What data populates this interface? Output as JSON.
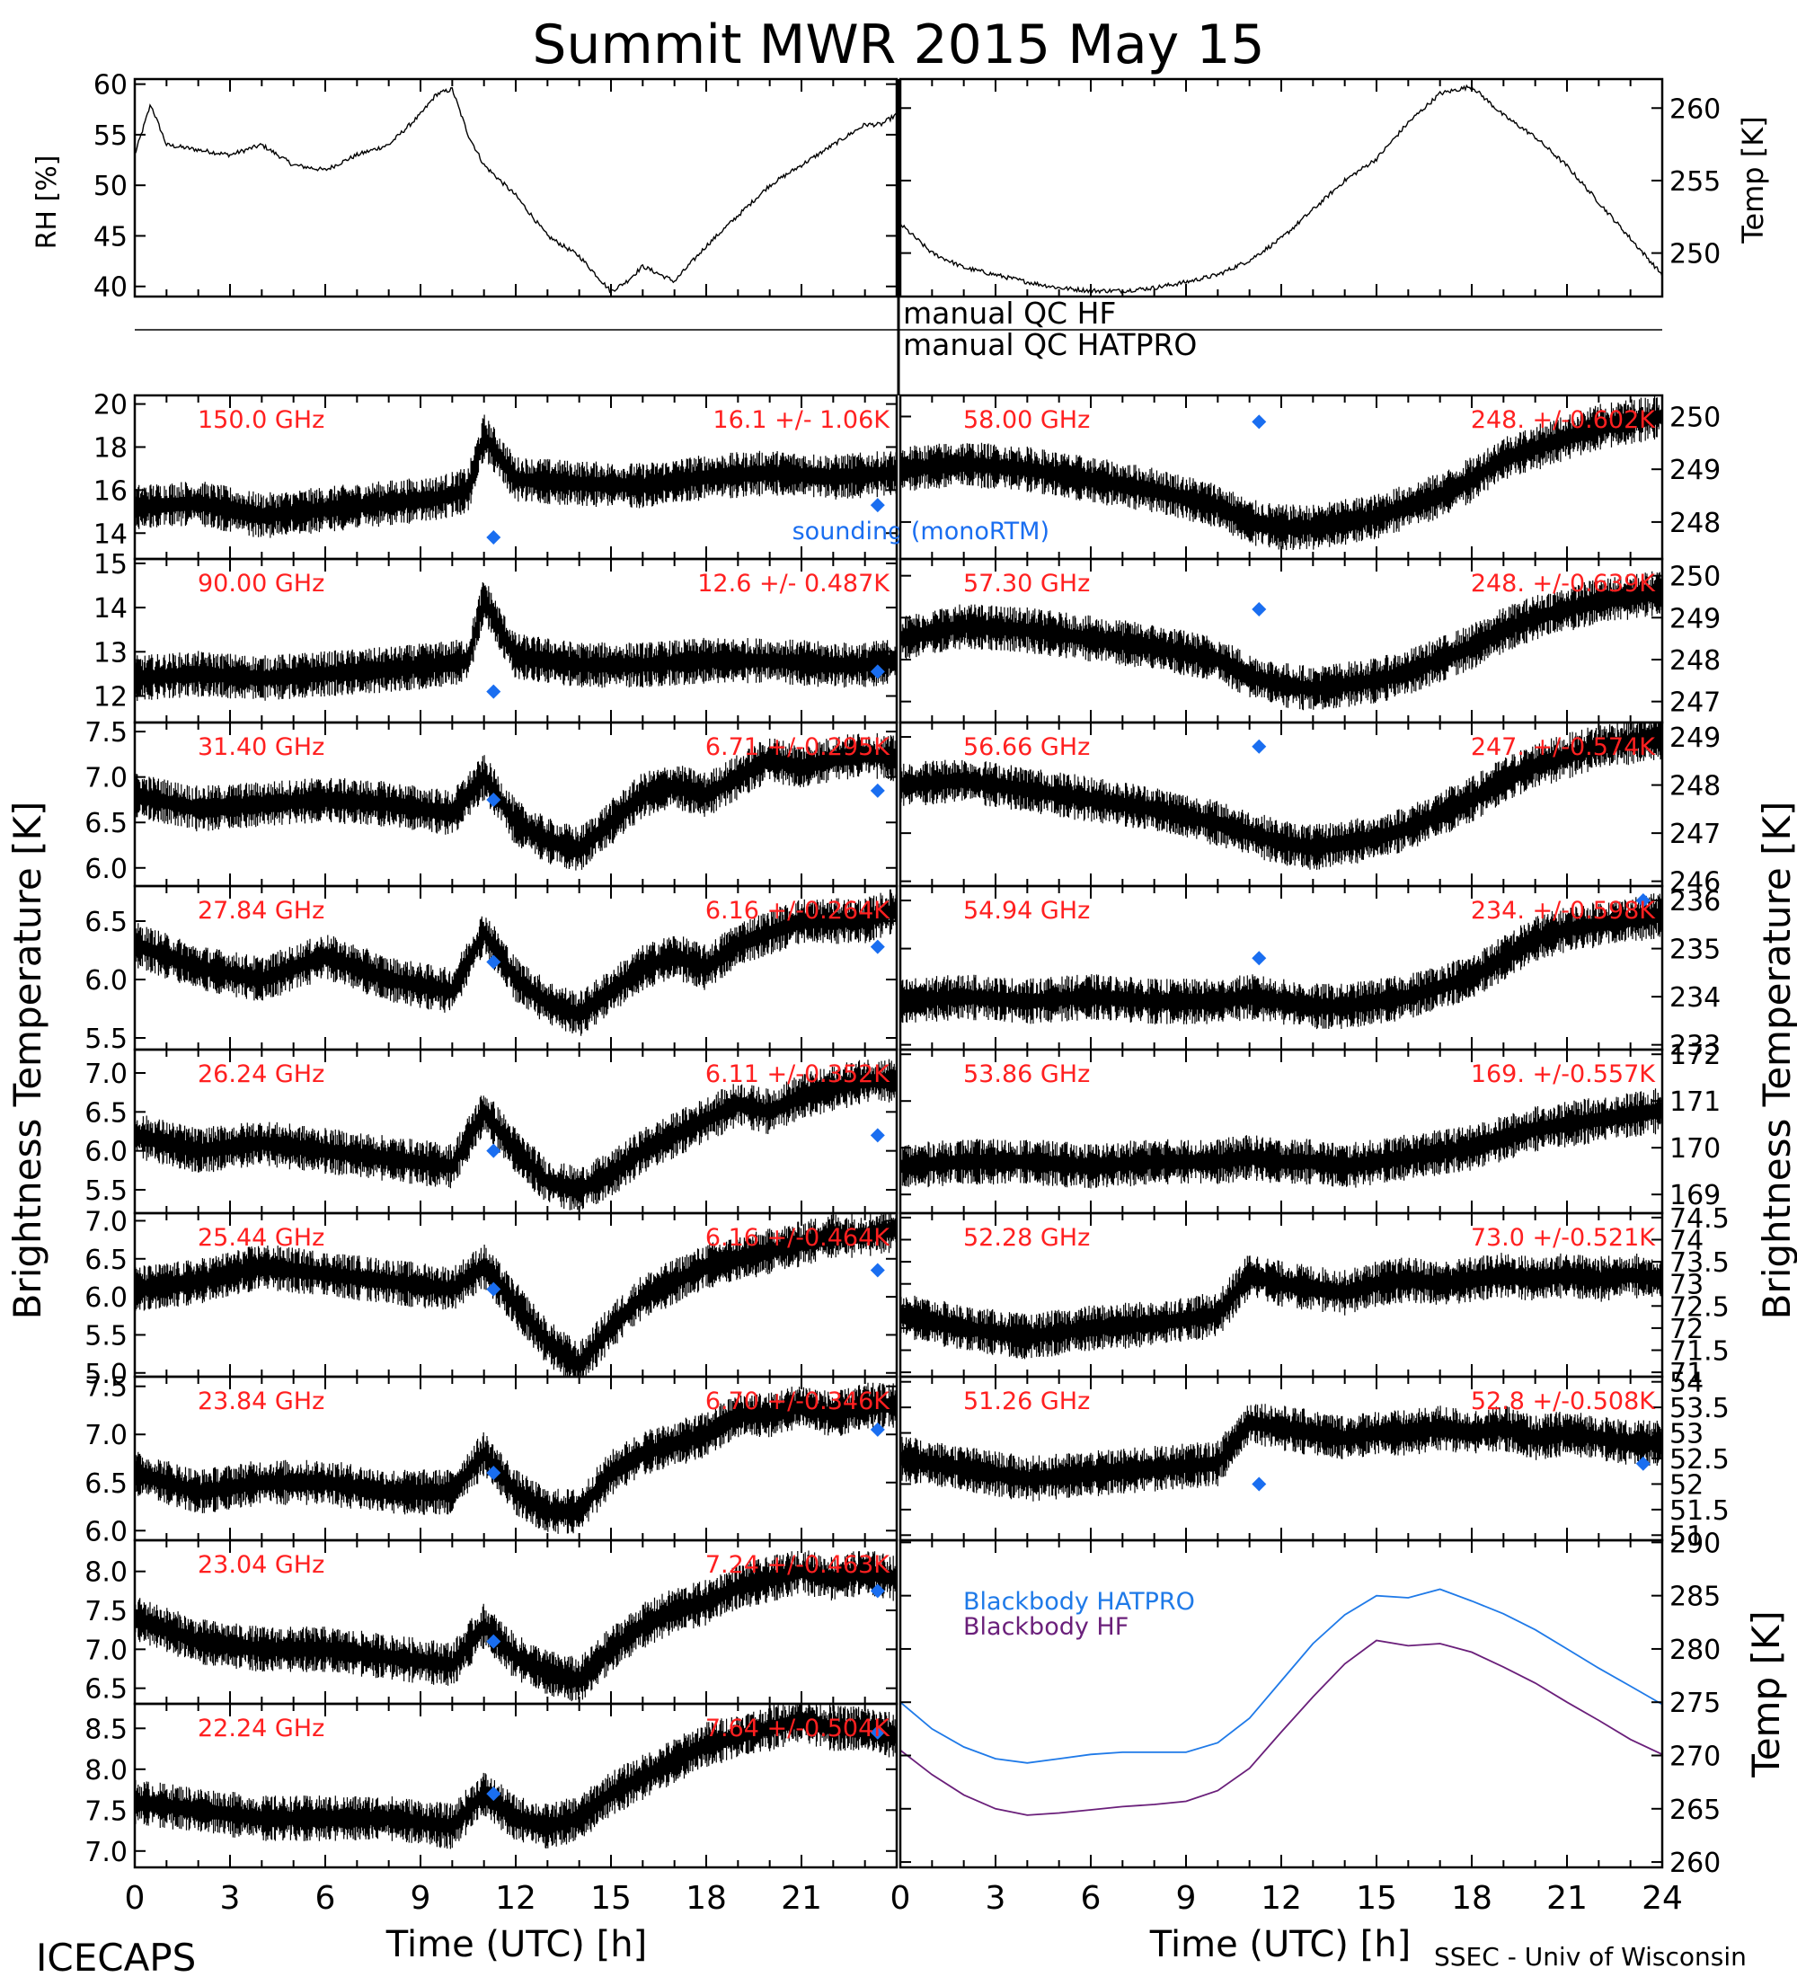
{
  "title": "Summit MWR 2015 May 15",
  "footer": {
    "left": "ICECAPS",
    "right": "SSEC - Univ of Wisconsin"
  },
  "colors": {
    "label": "#ff2020",
    "marker": "#1a6ef0",
    "hatpro": "#1f7ae8",
    "hf": "#6a1f7a",
    "data": "#000000"
  },
  "xaxis": {
    "label": "Time (UTC) [h]",
    "ticks": [
      0,
      3,
      6,
      9,
      12,
      15,
      18,
      21,
      24
    ]
  },
  "ylabels": {
    "left_big": "Brightness Temperature [K]",
    "right_big": "Brightness Temperature [K]",
    "rh": "RH [%]",
    "temp": "Temp [K]",
    "bb_temp": "Temp [K]"
  },
  "qc": {
    "hf": "manual  QC HF",
    "hatpro": "manual  QC HATPRO"
  },
  "sounding_label": "sounding (monoRTM)",
  "chart_data": [
    {
      "type": "line",
      "name": "rh",
      "ylabel": "RH [%]",
      "xlim": [
        0,
        24
      ],
      "ylim": [
        39,
        60.5
      ],
      "yticks": [
        40,
        45,
        50,
        55,
        60
      ],
      "x": [
        0,
        0.5,
        1,
        2,
        3,
        4,
        5,
        6,
        7,
        8,
        9,
        9.5,
        10,
        10.5,
        11,
        12,
        13,
        13.5,
        14,
        15,
        15.5,
        16,
        17,
        18,
        19,
        20,
        21,
        22,
        23,
        23.5,
        24
      ],
      "y": [
        53,
        58,
        54,
        53.5,
        53,
        54,
        52,
        51.5,
        53,
        54,
        57,
        59,
        59.5,
        55,
        52,
        49,
        45,
        44,
        43,
        39.5,
        40.5,
        42,
        40.5,
        44,
        47,
        50,
        52,
        54,
        56,
        56,
        57
      ]
    },
    {
      "type": "line",
      "name": "temp",
      "ylabel": "Temp [K]",
      "xlim": [
        0,
        24
      ],
      "ylim": [
        247,
        262
      ],
      "yticks": [
        250,
        255,
        260
      ],
      "x": [
        0,
        1,
        2,
        3,
        4,
        5,
        6,
        7,
        8,
        9,
        10,
        11,
        12,
        13,
        14,
        15,
        16,
        17,
        18,
        19,
        20,
        21,
        22,
        23,
        24
      ],
      "y": [
        252,
        250,
        249,
        248.5,
        248,
        247.6,
        247.4,
        247.4,
        247.6,
        248,
        248.5,
        249.5,
        251,
        253,
        255,
        256.5,
        259,
        261,
        261.5,
        259.5,
        258,
        256,
        253.5,
        251,
        248.5
      ]
    },
    {
      "type": "scatter",
      "label": "150.0 GHz",
      "stats": "16.1 +/- 1.06K",
      "ylim": [
        12.8,
        20.4
      ],
      "yticks": [
        14,
        16,
        18,
        20
      ],
      "x": [
        0,
        2,
        4,
        6,
        8,
        9.5,
        10.5,
        11,
        11.5,
        12,
        14,
        16,
        18,
        20,
        22,
        23,
        24
      ],
      "y": [
        15.2,
        15.4,
        14.8,
        15.1,
        15.4,
        15.6,
        16,
        18.5,
        17.5,
        16.5,
        16.3,
        16.2,
        16.6,
        16.8,
        16.6,
        16.7,
        16.8
      ],
      "sounding": [
        [
          11.3,
          13.8
        ],
        [
          23.4,
          15.3
        ]
      ]
    },
    {
      "type": "scatter",
      "label": "90.00 GHz",
      "stats": "12.6 +/- 0.487K",
      "ylim": [
        11.4,
        15.1
      ],
      "yticks": [
        12,
        13,
        14,
        15
      ],
      "x": [
        0,
        2,
        4,
        6,
        8,
        9.5,
        10.5,
        11,
        11.5,
        12,
        14,
        16,
        18,
        20,
        22,
        23,
        24
      ],
      "y": [
        12.4,
        12.5,
        12.4,
        12.5,
        12.6,
        12.7,
        12.8,
        14.2,
        13.5,
        12.9,
        12.7,
        12.7,
        12.8,
        12.8,
        12.7,
        12.7,
        12.8
      ],
      "sounding": [
        [
          11.3,
          12.1
        ],
        [
          23.4,
          12.55
        ]
      ]
    },
    {
      "type": "scatter",
      "label": "31.40 GHz",
      "stats": "6.71 +/-0.295K",
      "ylim": [
        5.8,
        7.6
      ],
      "yticks": [
        6.0,
        6.5,
        7.0,
        7.5
      ],
      "x": [
        0,
        2,
        4,
        6,
        8,
        10,
        11,
        12,
        13,
        14,
        15,
        16,
        17,
        18,
        19,
        20,
        21,
        22,
        23,
        24
      ],
      "y": [
        6.8,
        6.65,
        6.7,
        6.75,
        6.7,
        6.6,
        7,
        6.5,
        6.3,
        6.2,
        6.5,
        6.8,
        6.9,
        6.8,
        7,
        7.2,
        7.1,
        7.2,
        7.25,
        7.2
      ],
      "sounding": [
        [
          11.3,
          6.75
        ],
        [
          23.4,
          6.85
        ]
      ]
    },
    {
      "type": "scatter",
      "label": "27.84 GHz",
      "stats": "6.16 +/-0.264K",
      "ylim": [
        5.4,
        6.8
      ],
      "yticks": [
        5.5,
        6.0,
        6.5
      ],
      "x": [
        0,
        2,
        4,
        6,
        8,
        10,
        11,
        12,
        13,
        14,
        15,
        16,
        17,
        18,
        19,
        20,
        21,
        22,
        23,
        24
      ],
      "y": [
        6.3,
        6.1,
        6.0,
        6.2,
        6.0,
        5.9,
        6.4,
        6.0,
        5.8,
        5.7,
        5.9,
        6.1,
        6.2,
        6.1,
        6.3,
        6.4,
        6.5,
        6.5,
        6.5,
        6.6
      ],
      "sounding": [
        [
          11.3,
          6.15
        ],
        [
          23.4,
          6.28
        ]
      ]
    },
    {
      "type": "scatter",
      "label": "26.24 GHz",
      "stats": "6.11 +/-0.352K",
      "ylim": [
        5.2,
        7.3
      ],
      "yticks": [
        5.5,
        6.0,
        6.5,
        7.0
      ],
      "x": [
        0,
        2,
        4,
        6,
        8,
        10,
        11,
        12,
        13,
        14,
        15,
        16,
        17,
        18,
        19,
        20,
        21,
        22,
        23,
        24
      ],
      "y": [
        6.2,
        6.0,
        6.1,
        6.0,
        5.9,
        5.8,
        6.5,
        6.0,
        5.6,
        5.5,
        5.7,
        6.0,
        6.2,
        6.4,
        6.6,
        6.5,
        6.7,
        6.8,
        6.9,
        6.9
      ],
      "sounding": [
        [
          11.3,
          6.0
        ],
        [
          23.4,
          6.2
        ]
      ]
    },
    {
      "type": "scatter",
      "label": "25.44 GHz",
      "stats": "6.16 +/-0.464K",
      "ylim": [
        4.95,
        7.1
      ],
      "yticks": [
        5.0,
        5.5,
        6.0,
        6.5,
        7.0
      ],
      "x": [
        0,
        2,
        4,
        6,
        8,
        10,
        11,
        12,
        13,
        14,
        15,
        16,
        17,
        18,
        19,
        20,
        21,
        22,
        23,
        24
      ],
      "y": [
        6.1,
        6.2,
        6.4,
        6.3,
        6.2,
        6.1,
        6.4,
        5.9,
        5.4,
        5.1,
        5.6,
        6.0,
        6.2,
        6.4,
        6.5,
        6.6,
        6.7,
        6.8,
        6.8,
        6.9
      ],
      "sounding": [
        [
          11.3,
          6.1
        ],
        [
          23.4,
          6.35
        ]
      ]
    },
    {
      "type": "scatter",
      "label": "23.84 GHz",
      "stats": "6.70 +/-0.346K",
      "ylim": [
        5.9,
        7.6
      ],
      "yticks": [
        6.0,
        6.5,
        7.0,
        7.5
      ],
      "x": [
        0,
        2,
        4,
        6,
        8,
        10,
        11,
        12,
        13,
        14,
        15,
        16,
        17,
        18,
        19,
        20,
        21,
        22,
        23,
        24
      ],
      "y": [
        6.6,
        6.4,
        6.5,
        6.5,
        6.4,
        6.4,
        6.8,
        6.4,
        6.2,
        6.2,
        6.6,
        6.8,
        6.9,
        7.0,
        7.2,
        7.2,
        7.3,
        7.2,
        7.3,
        7.3
      ],
      "sounding": [
        [
          11.3,
          6.6
        ],
        [
          23.4,
          7.05
        ]
      ]
    },
    {
      "type": "scatter",
      "label": "23.04 GHz",
      "stats": "7.24 +/-0.463K",
      "ylim": [
        6.3,
        8.4
      ],
      "yticks": [
        6.5,
        7.0,
        7.5,
        8.0
      ],
      "x": [
        0,
        2,
        4,
        6,
        8,
        10,
        11,
        12,
        13,
        14,
        15,
        16,
        17,
        18,
        19,
        20,
        21,
        22,
        23,
        24
      ],
      "y": [
        7.4,
        7.1,
        7.0,
        7.0,
        6.9,
        6.8,
        7.3,
        6.9,
        6.7,
        6.6,
        7.0,
        7.3,
        7.5,
        7.6,
        7.8,
        7.9,
        8.0,
        7.9,
        8.0,
        7.9
      ],
      "sounding": [
        [
          11.3,
          7.1
        ],
        [
          23.4,
          7.75
        ]
      ]
    },
    {
      "type": "scatter",
      "label": "22.24 GHz",
      "stats": "7.64 +/-0.504K",
      "ylim": [
        6.8,
        8.8
      ],
      "yticks": [
        7.0,
        7.5,
        8.0,
        8.5
      ],
      "x": [
        0,
        2,
        4,
        6,
        8,
        10,
        11,
        12,
        13,
        14,
        15,
        16,
        17,
        18,
        19,
        20,
        21,
        22,
        23,
        24
      ],
      "y": [
        7.6,
        7.5,
        7.4,
        7.4,
        7.4,
        7.3,
        7.7,
        7.4,
        7.3,
        7.4,
        7.7,
        7.9,
        8.1,
        8.3,
        8.4,
        8.5,
        8.6,
        8.5,
        8.5,
        8.4
      ],
      "sounding": [
        [
          11.3,
          7.7
        ],
        [
          23.4,
          8.45
        ]
      ]
    },
    {
      "type": "scatter",
      "label": "58.00 GHz",
      "stats": "248. +/-0.602K",
      "ylim": [
        247.3,
        250.4
      ],
      "yticks": [
        248,
        249,
        250
      ],
      "x": [
        0,
        2,
        4,
        6,
        8,
        10,
        11,
        12,
        13,
        14,
        15,
        16,
        17,
        18,
        19,
        20,
        21,
        22,
        23,
        24
      ],
      "y": [
        249,
        249.1,
        249,
        248.8,
        248.6,
        248.3,
        248,
        247.9,
        247.9,
        248,
        248.1,
        248.3,
        248.5,
        248.8,
        249.2,
        249.4,
        249.6,
        249.8,
        249.9,
        250
      ],
      "sounding": [
        [
          11.3,
          249.9
        ]
      ]
    },
    {
      "type": "scatter",
      "label": "57.30 GHz",
      "stats": "248. +/-0.639K",
      "ylim": [
        246.5,
        250.4
      ],
      "yticks": [
        247,
        248,
        249,
        250
      ],
      "x": [
        0,
        2,
        4,
        6,
        8,
        10,
        11,
        12,
        13,
        14,
        15,
        16,
        17,
        18,
        19,
        20,
        21,
        22,
        23,
        24
      ],
      "y": [
        248.5,
        248.8,
        248.7,
        248.5,
        248.3,
        248,
        247.6,
        247.4,
        247.3,
        247.4,
        247.5,
        247.7,
        248,
        248.3,
        248.7,
        249,
        249.2,
        249.4,
        249.5,
        249.6
      ],
      "sounding": [
        [
          11.3,
          249.2
        ]
      ]
    },
    {
      "type": "scatter",
      "label": "56.66 GHz",
      "stats": "247. +/-0.574K",
      "ylim": [
        245.9,
        249.3
      ],
      "yticks": [
        246,
        247,
        248,
        249
      ],
      "x": [
        0,
        2,
        4,
        6,
        8,
        10,
        11,
        12,
        13,
        14,
        15,
        16,
        17,
        18,
        19,
        20,
        21,
        22,
        23,
        24
      ],
      "y": [
        248,
        248.1,
        247.9,
        247.7,
        247.5,
        247.2,
        247,
        246.8,
        246.7,
        246.8,
        246.9,
        247.1,
        247.4,
        247.7,
        248.1,
        248.4,
        248.6,
        248.8,
        248.9,
        249
      ],
      "sounding": [
        [
          11.3,
          248.8
        ]
      ]
    },
    {
      "type": "scatter",
      "label": "54.94 GHz",
      "stats": "234. +/-0.598K",
      "ylim": [
        232.9,
        236.3
      ],
      "yticks": [
        233,
        234,
        235,
        236
      ],
      "x": [
        0,
        2,
        4,
        6,
        8,
        10,
        11,
        12,
        13,
        14,
        15,
        16,
        17,
        18,
        19,
        20,
        21,
        22,
        23,
        24
      ],
      "y": [
        233.9,
        234,
        233.9,
        234,
        233.9,
        233.9,
        234,
        233.9,
        233.8,
        233.8,
        233.9,
        234,
        234.2,
        234.4,
        234.8,
        235.2,
        235.4,
        235.5,
        235.6,
        235.7
      ],
      "sounding": [
        [
          11.3,
          234.8
        ],
        [
          23.4,
          236
        ]
      ]
    },
    {
      "type": "scatter",
      "label": "53.86 GHz",
      "stats": "169. +/-0.557K",
      "ylim": [
        168.6,
        172.1
      ],
      "yticks": [
        169,
        170,
        171,
        172
      ],
      "x": [
        0,
        2,
        4,
        6,
        8,
        10,
        11,
        12,
        13,
        14,
        15,
        16,
        17,
        18,
        19,
        20,
        21,
        22,
        23,
        24
      ],
      "y": [
        169.6,
        169.7,
        169.7,
        169.6,
        169.7,
        169.7,
        169.8,
        169.7,
        169.7,
        169.6,
        169.7,
        169.8,
        169.9,
        170,
        170.2,
        170.4,
        170.5,
        170.6,
        170.7,
        170.8
      ],
      "sounding": []
    },
    {
      "type": "scatter",
      "label": "52.28 GHz",
      "stats": "73.0 +/-0.521K",
      "ylim": [
        70.9,
        74.6
      ],
      "yticks": [
        71.0,
        71.5,
        72.0,
        72.5,
        73.0,
        73.5,
        74.0,
        74.5
      ],
      "x": [
        0,
        2,
        4,
        6,
        8,
        10,
        11,
        12,
        13,
        14,
        15,
        16,
        17,
        18,
        19,
        20,
        21,
        22,
        23,
        24
      ],
      "y": [
        72.3,
        72,
        71.8,
        72,
        72.1,
        72.3,
        73.2,
        73,
        72.9,
        72.8,
        73,
        73.1,
        73,
        73.1,
        73.2,
        73.1,
        73.2,
        73.1,
        73.2,
        73.1
      ],
      "sounding": []
    },
    {
      "type": "scatter",
      "label": "51.26 GHz",
      "stats": "52.8 +/-0.508K",
      "ylim": [
        50.9,
        54.1
      ],
      "yticks": [
        51.0,
        51.5,
        52.0,
        52.5,
        53.0,
        53.5,
        54.0
      ],
      "x": [
        0,
        2,
        4,
        6,
        8,
        10,
        11,
        12,
        13,
        14,
        15,
        16,
        17,
        18,
        19,
        20,
        21,
        22,
        23,
        24
      ],
      "y": [
        52.5,
        52.3,
        52.1,
        52.2,
        52.3,
        52.4,
        53.2,
        53.1,
        53,
        52.9,
        53,
        53,
        53.1,
        53,
        53.1,
        52.9,
        53,
        52.9,
        52.8,
        52.8
      ],
      "sounding": [
        [
          11.3,
          52.0
        ],
        [
          23.4,
          52.4
        ]
      ]
    },
    {
      "type": "line",
      "name": "blackbody",
      "ylabel": "Temp [K]",
      "ylim": [
        259.5,
        290.2
      ],
      "yticks": [
        260,
        265,
        270,
        275,
        280,
        285,
        290
      ],
      "series": [
        {
          "name": "Blackbody HATPRO",
          "x": [
            0,
            1,
            2,
            3,
            4,
            5,
            6,
            7,
            8,
            9,
            10,
            11,
            12,
            13,
            14,
            15,
            16,
            17,
            18,
            19,
            20,
            21,
            22,
            23,
            24
          ],
          "y": [
            275,
            272.5,
            270.8,
            269.7,
            269.3,
            269.7,
            270.1,
            270.3,
            270.3,
            270.3,
            271.2,
            273.5,
            277,
            280.5,
            283.2,
            285,
            284.8,
            285.6,
            284.5,
            283.3,
            281.8,
            280,
            278.2,
            276.5,
            274.8
          ]
        },
        {
          "name": "Blackbody HF",
          "x": [
            0,
            1,
            2,
            3,
            4,
            5,
            6,
            7,
            8,
            9,
            10,
            11,
            12,
            13,
            14,
            15,
            16,
            17,
            18,
            19,
            20,
            21,
            22,
            23,
            24
          ],
          "y": [
            270.5,
            268.2,
            266.3,
            265,
            264.4,
            264.6,
            264.9,
            265.2,
            265.4,
            265.7,
            266.7,
            268.8,
            272.2,
            275.5,
            278.6,
            280.8,
            280.3,
            280.5,
            279.7,
            278.3,
            276.8,
            275,
            273.3,
            271.5,
            270.1
          ]
        }
      ]
    }
  ]
}
